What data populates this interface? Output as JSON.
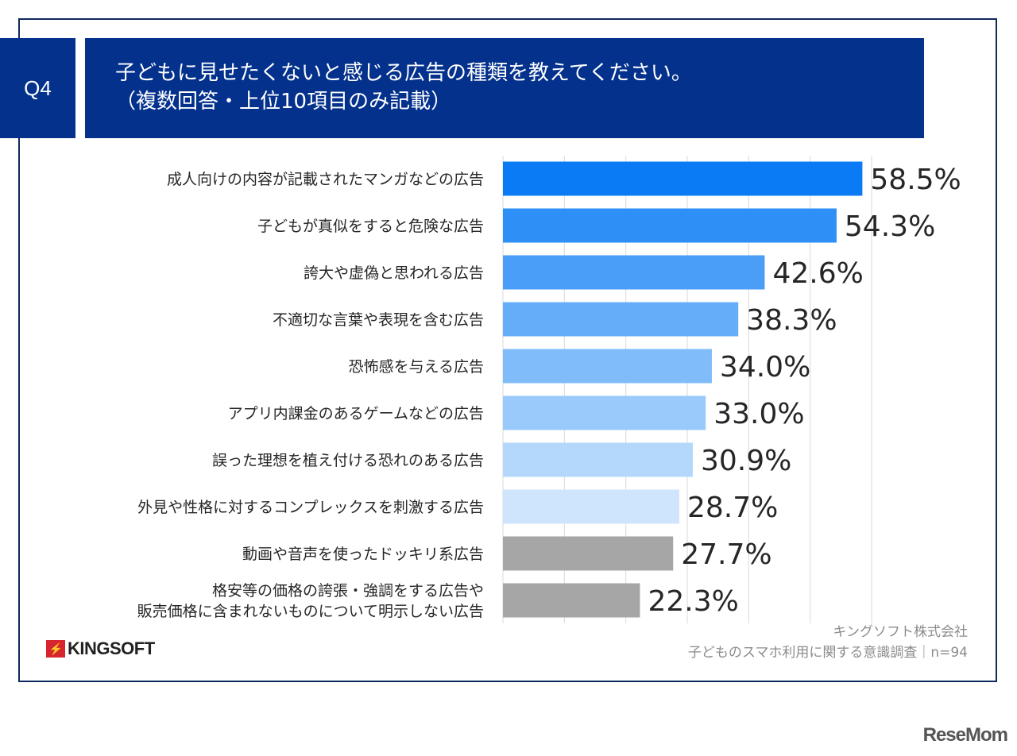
{
  "header": {
    "q_label": "Q4",
    "title_line1": "子どもに見せたくないと感じる広告の種類を教えてください。",
    "title_line2": "（複数回答・上位10項目のみ記載）"
  },
  "chart_data": {
    "type": "bar",
    "orientation": "horizontal",
    "categories": [
      "成人向けの内容が記載されたマンガなどの広告",
      "子どもが真似をすると危険な広告",
      "誇大や虚偽と思われる広告",
      "不適切な言葉や表現を含む広告",
      "恐怖感を与える広告",
      "アプリ内課金のあるゲームなどの広告",
      "誤った理想を植え付ける恐れのある広告",
      "外見や性格に対するコンプレックスを刺激する広告",
      "動画や音声を使ったドッキリ系広告",
      "格安等の価格の誇張・強調をする広告や\n販売価格に含まれないものについて明示しない広告"
    ],
    "values": [
      58.5,
      54.3,
      42.6,
      38.3,
      34.0,
      33.0,
      30.9,
      28.7,
      27.7,
      22.3
    ],
    "data_labels": [
      "58.5%",
      "54.3%",
      "42.6%",
      "38.3%",
      "34.0%",
      "33.0%",
      "30.9%",
      "28.7%",
      "27.7%",
      "22.3%"
    ],
    "colors": [
      "#0a7af5",
      "#2e8ff7",
      "#4a9ef8",
      "#65adf9",
      "#80bcfa",
      "#99cafb",
      "#b4d8fc",
      "#cfe5fd",
      "#a6a6a6",
      "#a6a6a6"
    ],
    "xlim": [
      0,
      60
    ],
    "grid": true,
    "grid_step": 10
  },
  "footer": {
    "source_line1": "キングソフト株式会社",
    "source_line2": "子どものスマホ利用に関する意識調査｜n=94",
    "logo_text": "KINGSOFT",
    "watermark": "ReseMom"
  }
}
